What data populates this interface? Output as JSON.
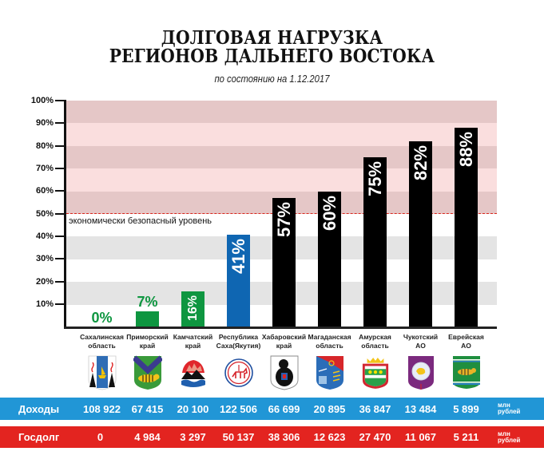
{
  "title": {
    "line1": "ДОЛГОВАЯ НАГРУЗКА",
    "line2": "РЕГИОНОВ ДАЛЬНЕГО ВОСТОКА"
  },
  "subtitle": "по состоянию на 1.12.2017",
  "y_axis": {
    "ticks": [
      "100%",
      "90%",
      "80%",
      "70%",
      "60%",
      "50%",
      "40%",
      "30%",
      "20%",
      "10%"
    ]
  },
  "threshold": {
    "value": 50,
    "label": "экономически безопасный уровень",
    "color": "#d9261c"
  },
  "colors": {
    "green": "#0e9640",
    "blue": "#0f66b2",
    "black": "#000000",
    "danger_band_dark": "#e5c7c7",
    "danger_band_light": "#fadede",
    "safe_band_grey": "#e4e4e4"
  },
  "regions": [
    {
      "name_line1": "Сахалинская",
      "name_line2": "область",
      "value": 0,
      "label": "0%",
      "color": "#0e9640",
      "crest": "sakhalin-crest",
      "income": "108 922",
      "debt": "0"
    },
    {
      "name_line1": "Приморский",
      "name_line2": "край",
      "value": 7,
      "label": "7%",
      "color": "#0e9640",
      "crest": "primorsky-crest",
      "income": "67 415",
      "debt": "4 984"
    },
    {
      "name_line1": "Камчатский",
      "name_line2": "край",
      "value": 16,
      "label": "16%",
      "color": "#0e9640",
      "crest": "kamchatka-crest",
      "income": "20 100",
      "debt": "3 297"
    },
    {
      "name_line1": "Республика",
      "name_line2": "Саха(Якутия)",
      "value": 41,
      "label": "41%",
      "color": "#0f66b2",
      "crest": "yakutia-crest",
      "income": "122 506",
      "debt": "50 137"
    },
    {
      "name_line1": "Хабаровский",
      "name_line2": "край",
      "value": 57,
      "label": "57%",
      "color": "#000000",
      "crest": "khabarovsk-crest",
      "income": "66 699",
      "debt": "38 306"
    },
    {
      "name_line1": "Магаданская",
      "name_line2": "область",
      "value": 60,
      "label": "60%",
      "color": "#000000",
      "crest": "magadan-crest",
      "income": "20 895",
      "debt": "12 623"
    },
    {
      "name_line1": "Амурская",
      "name_line2": "область",
      "value": 75,
      "label": "75%",
      "color": "#000000",
      "crest": "amur-crest",
      "income": "36 847",
      "debt": "27 470"
    },
    {
      "name_line1": "Чукотский",
      "name_line2": "АО",
      "value": 82,
      "label": "82%",
      "color": "#000000",
      "crest": "chukotka-crest",
      "income": "13 484",
      "debt": "11 067"
    },
    {
      "name_line1": "Еврейская",
      "name_line2": "АО",
      "value": 88,
      "label": "88%",
      "color": "#000000",
      "crest": "jewish-ao-crest",
      "income": "5 899",
      "debt": "5 211"
    }
  ],
  "table": {
    "income_label": "Доходы",
    "debt_label": "Госдолг",
    "unit_line1": "млн",
    "unit_line2": "рублей",
    "income_color": "#2196d6",
    "debt_color": "#e32420"
  },
  "chart_data": {
    "type": "bar",
    "title": "ДОЛГОВАЯ НАГРУЗКА РЕГИОНОВ ДАЛЬНЕГО ВОСТОКА",
    "subtitle": "по состоянию на 1.12.2017",
    "categories": [
      "Сахалинская область",
      "Приморский край",
      "Камчатский край",
      "Республика Саха(Якутия)",
      "Хабаровский край",
      "Магаданская область",
      "Амурская область",
      "Чукотский АО",
      "Еврейская АО"
    ],
    "values": [
      0,
      7,
      16,
      41,
      57,
      60,
      75,
      82,
      88
    ],
    "value_labels": [
      "0%",
      "7%",
      "16%",
      "41%",
      "57%",
      "60%",
      "75%",
      "82%",
      "88%"
    ],
    "bar_colors": [
      "#0e9640",
      "#0e9640",
      "#0e9640",
      "#0f66b2",
      "#000000",
      "#000000",
      "#000000",
      "#000000",
      "#000000"
    ],
    "xlabel": "",
    "ylabel": "",
    "ylim": [
      0,
      100
    ],
    "yticks": [
      "10%",
      "20%",
      "30%",
      "40%",
      "50%",
      "60%",
      "70%",
      "80%",
      "90%",
      "100%"
    ],
    "grid": "alternating horizontal bands (pink above 50%, grey below)",
    "annotations": [
      {
        "type": "hline",
        "y": 50,
        "style": "dashed red",
        "text": "экономически безопасный уровень"
      }
    ],
    "table": {
      "unit": "млн рублей",
      "series": [
        {
          "name": "Доходы",
          "values": [
            108922,
            67415,
            20100,
            122506,
            66699,
            20895,
            36847,
            13484,
            5899
          ]
        },
        {
          "name": "Госдолг",
          "values": [
            0,
            4984,
            3297,
            50137,
            38306,
            12623,
            27470,
            11067,
            5211
          ]
        }
      ]
    }
  }
}
